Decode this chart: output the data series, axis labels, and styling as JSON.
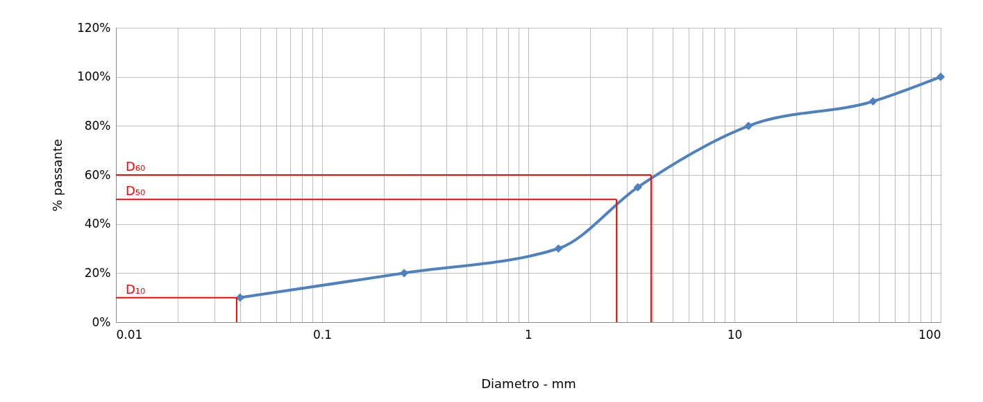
{
  "chart_data": {
    "type": "line",
    "xlabel": "Diametro - mm",
    "ylabel": "% passante",
    "x": [
      0.04,
      0.25,
      1.4,
      3.4,
      11.7,
      47,
      100
    ],
    "series": [
      {
        "color": "#4f81bd",
        "values": [
          10,
          20,
          30,
          55,
          80,
          90,
          100
        ]
      }
    ],
    "log": "x",
    "xlim": [
      0.01,
      100
    ],
    "ylim": [
      0,
      120
    ],
    "xticks": [
      0.01,
      {
        "value": 0.02,
        "label": null
      },
      {
        "value": 0.03,
        "label": null
      },
      {
        "value": 0.04,
        "label": null
      },
      {
        "value": 0.05,
        "label": null
      },
      {
        "value": 0.06,
        "label": null
      },
      {
        "value": 0.07,
        "label": null
      },
      {
        "value": 0.08,
        "label": null
      },
      {
        "value": 0.09,
        "label": null
      },
      0.1,
      {
        "value": 0.2,
        "label": null
      },
      {
        "value": 0.3,
        "label": null
      },
      {
        "value": 0.4,
        "label": null
      },
      {
        "value": 0.5,
        "label": null
      },
      {
        "value": 0.6,
        "label": null
      },
      {
        "value": 0.7,
        "label": null
      },
      {
        "value": 0.8,
        "label": null
      },
      {
        "value": 0.9,
        "label": null
      },
      1,
      {
        "value": 2,
        "label": null
      },
      {
        "value": 3,
        "label": null
      },
      {
        "value": 4,
        "label": null
      },
      {
        "value": 5,
        "label": null
      },
      {
        "value": 6,
        "label": null
      },
      {
        "value": 7,
        "label": null
      },
      {
        "value": 8,
        "label": null
      },
      {
        "value": 9,
        "label": null
      },
      10,
      {
        "value": 20,
        "label": null
      },
      {
        "value": 30,
        "label": null
      },
      {
        "value": 40,
        "label": null
      },
      {
        "value": 50,
        "label": null
      },
      {
        "value": 60,
        "label": null
      },
      {
        "value": 70,
        "label": null
      },
      {
        "value": 80,
        "label": null
      },
      {
        "value": 90,
        "label": null
      },
      100
    ],
    "yticks": [
      {
        "value": 0,
        "label": "0%"
      },
      {
        "value": 20,
        "label": "20%"
      },
      {
        "value": 40,
        "label": "40%"
      },
      {
        "value": 60,
        "label": "60%"
      },
      {
        "value": 80,
        "label": "80%"
      },
      {
        "value": 100,
        "label": "100%"
      },
      {
        "value": 120,
        "label": "120%"
      }
    ],
    "grid": true,
    "marker": "diamond",
    "line_style": "solid",
    "ref_lines": [
      {
        "axis": "y",
        "value": 60,
        "label": "D₆₀",
        "color": "#ff0000"
      },
      {
        "axis": "x",
        "value": 3.94,
        "color": "#ff0000"
      },
      {
        "axis": "y",
        "value": 50,
        "label": "D₅₀",
        "color": "#ff0000"
      },
      {
        "axis": "x",
        "value": 2.68,
        "color": "#ff0000"
      },
      {
        "axis": "y",
        "value": 10,
        "label": "D₁₀",
        "color": "#ff0000"
      },
      {
        "axis": "x",
        "value": 0.0385,
        "color": "#ff0000"
      }
    ]
  }
}
